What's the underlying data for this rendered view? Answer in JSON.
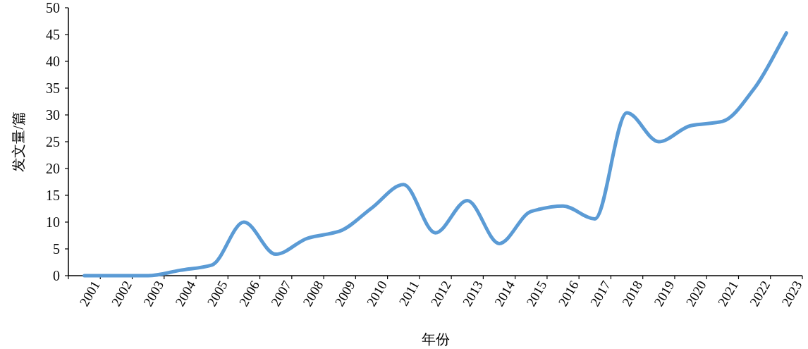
{
  "chart_data": {
    "type": "line",
    "xlabel": "年份",
    "ylabel": "发文量/篇",
    "categories": [
      "2001",
      "2002",
      "2003",
      "2004",
      "2005",
      "2006",
      "2007",
      "2008",
      "2009",
      "2010",
      "2011",
      "2012",
      "2013",
      "2014",
      "2015",
      "2016",
      "2017",
      "2018",
      "2019",
      "2020",
      "2021",
      "2022",
      "2023"
    ],
    "series": [
      {
        "color": "#5b9bd5",
        "values": [
          0,
          0,
          0,
          1,
          2,
          10,
          4,
          7,
          8.3,
          12.6,
          17,
          8,
          14,
          6,
          12,
          13,
          10.6,
          30.4,
          25,
          28,
          28.8,
          35,
          45.3
        ]
      }
    ],
    "ylim": [
      0,
      50
    ],
    "yticks": [
      0,
      5,
      10,
      15,
      20,
      25,
      30,
      35,
      40,
      45,
      50
    ]
  }
}
